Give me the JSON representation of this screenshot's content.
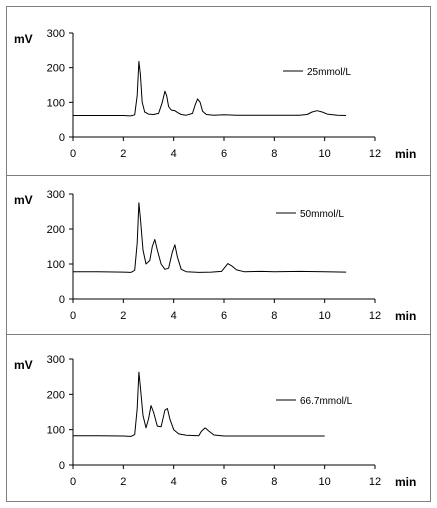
{
  "chart_data": [
    {
      "type": "line",
      "xlabel": "min",
      "ylabel": "mV",
      "xlim": [
        0,
        12
      ],
      "ylim": [
        0,
        300
      ],
      "xticks": [
        0,
        2,
        4,
        6,
        8,
        10,
        12
      ],
      "yticks": [
        0,
        100,
        200,
        300
      ],
      "legend_position": "right",
      "series": [
        {
          "name": "25mmol/L",
          "points": [
            [
              0,
              62
            ],
            [
              2.0,
              62
            ],
            [
              2.3,
              61
            ],
            [
              2.45,
              64
            ],
            [
              2.55,
              120
            ],
            [
              2.62,
              218
            ],
            [
              2.68,
              180
            ],
            [
              2.75,
              100
            ],
            [
              2.85,
              72
            ],
            [
              3.0,
              66
            ],
            [
              3.2,
              65
            ],
            [
              3.4,
              68
            ],
            [
              3.55,
              100
            ],
            [
              3.65,
              132
            ],
            [
              3.72,
              120
            ],
            [
              3.8,
              88
            ],
            [
              3.9,
              78
            ],
            [
              4.05,
              76
            ],
            [
              4.15,
              71
            ],
            [
              4.3,
              65
            ],
            [
              4.5,
              63
            ],
            [
              4.75,
              68
            ],
            [
              4.85,
              92
            ],
            [
              4.95,
              110
            ],
            [
              5.05,
              100
            ],
            [
              5.15,
              74
            ],
            [
              5.3,
              65
            ],
            [
              5.6,
              63
            ],
            [
              6.0,
              64
            ],
            [
              6.5,
              63
            ],
            [
              7.0,
              63
            ],
            [
              8.0,
              63
            ],
            [
              9.0,
              63
            ],
            [
              9.3,
              65
            ],
            [
              9.5,
              72
            ],
            [
              9.7,
              76
            ],
            [
              9.9,
              72
            ],
            [
              10.1,
              66
            ],
            [
              10.5,
              63
            ],
            [
              10.85,
              62
            ]
          ]
        }
      ]
    },
    {
      "type": "line",
      "xlabel": "min",
      "ylabel": "mV",
      "xlim": [
        0,
        12
      ],
      "ylim": [
        0,
        300
      ],
      "xticks": [
        0,
        2,
        4,
        6,
        8,
        10,
        12
      ],
      "yticks": [
        0,
        100,
        200,
        300
      ],
      "legend_position": "right",
      "series": [
        {
          "name": "50mmol/L",
          "points": [
            [
              0,
              78
            ],
            [
              1.0,
              78
            ],
            [
              2.0,
              77
            ],
            [
              2.3,
              76
            ],
            [
              2.45,
              82
            ],
            [
              2.55,
              160
            ],
            [
              2.62,
              275
            ],
            [
              2.68,
              230
            ],
            [
              2.78,
              140
            ],
            [
              2.9,
              100
            ],
            [
              3.05,
              110
            ],
            [
              3.15,
              150
            ],
            [
              3.25,
              170
            ],
            [
              3.35,
              140
            ],
            [
              3.5,
              100
            ],
            [
              3.65,
              85
            ],
            [
              3.8,
              88
            ],
            [
              3.95,
              135
            ],
            [
              4.05,
              155
            ],
            [
              4.15,
              120
            ],
            [
              4.3,
              85
            ],
            [
              4.5,
              78
            ],
            [
              5.0,
              76
            ],
            [
              5.5,
              77
            ],
            [
              5.9,
              79
            ],
            [
              6.05,
              92
            ],
            [
              6.15,
              101
            ],
            [
              6.3,
              95
            ],
            [
              6.5,
              83
            ],
            [
              6.8,
              78
            ],
            [
              7.5,
              79
            ],
            [
              8.0,
              78
            ],
            [
              9.0,
              79
            ],
            [
              10.0,
              78
            ],
            [
              10.85,
              77
            ]
          ]
        }
      ]
    },
    {
      "type": "line",
      "xlabel": "min",
      "ylabel": "mV",
      "xlim": [
        0,
        12
      ],
      "ylim": [
        0,
        300
      ],
      "xticks": [
        0,
        2,
        4,
        6,
        8,
        10,
        12
      ],
      "yticks": [
        0,
        100,
        200,
        300
      ],
      "legend_position": "right",
      "series": [
        {
          "name": "66.7mmol/L",
          "points": [
            [
              0,
              83
            ],
            [
              1.0,
              83
            ],
            [
              2.0,
              82
            ],
            [
              2.3,
              81
            ],
            [
              2.45,
              86
            ],
            [
              2.55,
              160
            ],
            [
              2.62,
              263
            ],
            [
              2.68,
              220
            ],
            [
              2.78,
              140
            ],
            [
              2.9,
              105
            ],
            [
              3.0,
              130
            ],
            [
              3.1,
              168
            ],
            [
              3.2,
              150
            ],
            [
              3.35,
              110
            ],
            [
              3.5,
              108
            ],
            [
              3.65,
              155
            ],
            [
              3.75,
              160
            ],
            [
              3.85,
              130
            ],
            [
              4.0,
              100
            ],
            [
              4.2,
              88
            ],
            [
              4.5,
              84
            ],
            [
              5.0,
              83
            ],
            [
              5.1,
              95
            ],
            [
              5.25,
              105
            ],
            [
              5.4,
              96
            ],
            [
              5.6,
              85
            ],
            [
              6.0,
              82
            ],
            [
              7.0,
              82
            ],
            [
              8.0,
              82
            ],
            [
              9.0,
              82
            ],
            [
              10.0,
              82
            ]
          ]
        }
      ]
    }
  ]
}
